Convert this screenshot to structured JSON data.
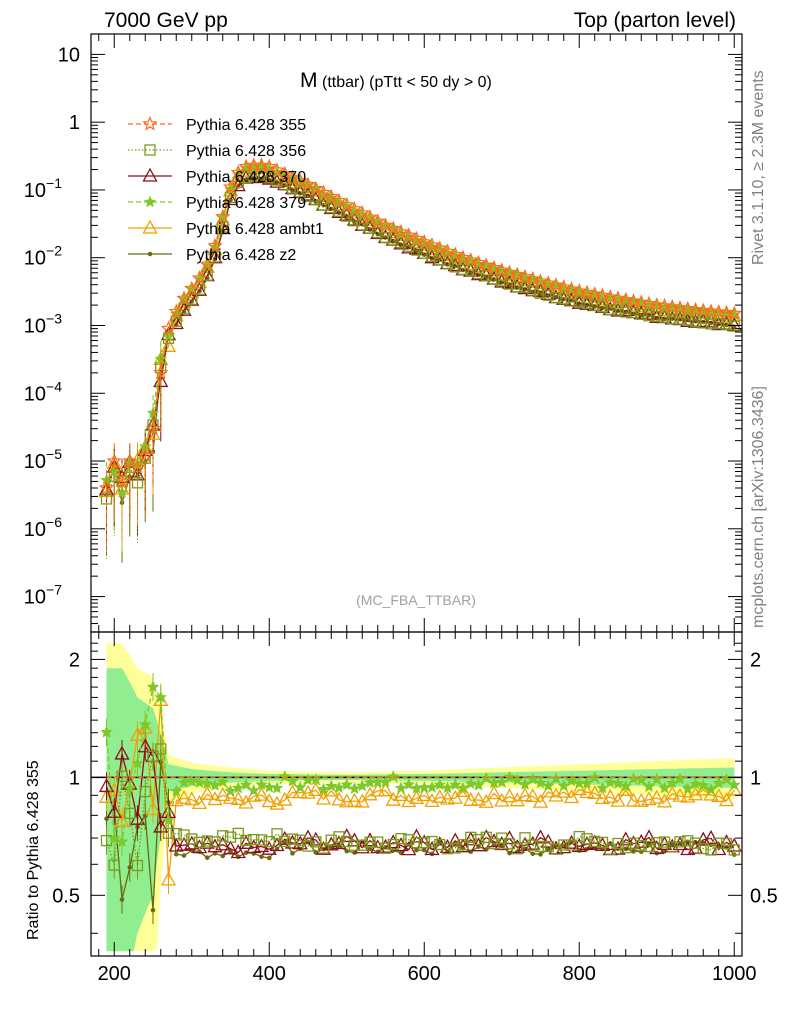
{
  "header": {
    "left": "7000 GeV pp",
    "right": "Top (parton level)"
  },
  "side_labels": {
    "rivet": "Rivet 3.1.10, ≥ 2.3M events",
    "mcplots": "mcplots.cern.ch [arXiv:1306.3436]"
  },
  "chart_data": {
    "type": "line",
    "title_main": "M",
    "title_sub": "(ttbar) (pTtt < 50 dy > 0)",
    "watermark": "(MC_FBA_TTBAR)",
    "ratio_ylabel": "Ratio to Pythia 6.428 355",
    "x_range": [
      170,
      1010
    ],
    "upper_y_range": [
      3e-08,
      20
    ],
    "upper_y_scale": "log",
    "upper_y_ticks": [
      "10",
      "1",
      "10−1",
      "10−2",
      "10−3",
      "10−4",
      "10−5",
      "10−6",
      "10−7"
    ],
    "ratio_y_range": [
      0.35,
      2.35
    ],
    "ratio_y_scale": "log",
    "ratio_y_ticks": [
      "2",
      "1",
      "0.5"
    ],
    "x_ticks": [
      "200",
      "400",
      "600",
      "800",
      "1000"
    ],
    "legend_position": "top-left",
    "series": [
      {
        "name": "Pythia 6.428 355",
        "color": "#ff6a1a",
        "marker": "star-open",
        "dash": "dashed",
        "scale": 1.0,
        "peak_scale": 1.0
      },
      {
        "name": "Pythia 6.428 356",
        "color": "#7a9a1a",
        "marker": "square-open",
        "dash": "dotted",
        "scale": 0.68,
        "peak_scale": 0.7
      },
      {
        "name": "Pythia 6.428 370",
        "color": "#8b0e1a",
        "marker": "triangle-open",
        "dash": "solid",
        "scale": 0.68,
        "peak_scale": 0.66
      },
      {
        "name": "Pythia 6.428 379",
        "color": "#7ec828",
        "marker": "star-filled",
        "dash": "dashed",
        "scale": 0.97,
        "peak_scale": 0.95
      },
      {
        "name": "Pythia 6.428 ambt1",
        "color": "#f0a000",
        "marker": "triangle-open",
        "dash": "solid",
        "scale": 0.9,
        "peak_scale": 0.88
      },
      {
        "name": "Pythia 6.428 z2",
        "color": "#6b6b10",
        "marker": "dot",
        "dash": "solid",
        "scale": 0.66,
        "peak_scale": 0.64
      }
    ],
    "reference_curve": {
      "note": "Pythia 6.428 355 distribution (approximate readout)",
      "x": [
        190,
        200,
        210,
        220,
        230,
        240,
        250,
        260,
        270,
        280,
        290,
        300,
        310,
        320,
        330,
        340,
        350,
        360,
        370,
        380,
        390,
        400,
        450,
        500,
        550,
        600,
        650,
        700,
        750,
        800,
        850,
        900,
        950,
        1000
      ],
      "y": [
        4e-06,
        1e-05,
        5e-06,
        1e-05,
        8e-06,
        1.2e-05,
        3e-05,
        0.0002,
        0.0009,
        0.0016,
        0.0025,
        0.0035,
        0.005,
        0.008,
        0.015,
        0.04,
        0.11,
        0.18,
        0.22,
        0.23,
        0.23,
        0.22,
        0.12,
        0.06,
        0.03,
        0.017,
        0.01,
        0.0065,
        0.0045,
        0.0032,
        0.0025,
        0.002,
        0.0017,
        0.0015
      ]
    },
    "ratio_bands": {
      "note": "statistical uncertainty bands of reference (green = 1 sigma, yellow = 2 sigma), approximate",
      "x": [
        190,
        210,
        230,
        250,
        270,
        300,
        350,
        400,
        500,
        600,
        700,
        800,
        900,
        1000
      ],
      "green_halfwidth": [
        0.9,
        0.9,
        0.6,
        0.5,
        0.08,
        0.05,
        0.03,
        0.02,
        0.015,
        0.02,
        0.03,
        0.04,
        0.05,
        0.06
      ],
      "yellow_halfwidth": [
        1.2,
        1.2,
        0.9,
        0.8,
        0.14,
        0.09,
        0.06,
        0.04,
        0.03,
        0.04,
        0.06,
        0.08,
        0.1,
        0.12
      ]
    }
  }
}
